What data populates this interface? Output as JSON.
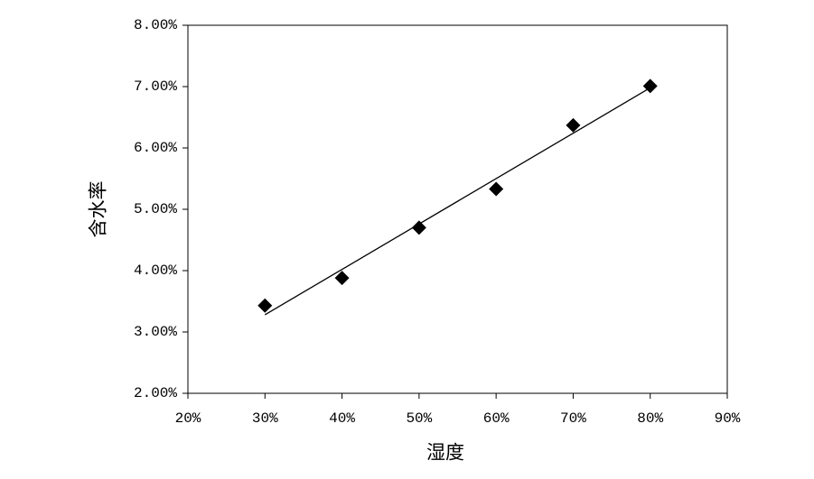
{
  "chart_data": {
    "type": "scatter",
    "x_label": "湿度",
    "y_label": "含水率",
    "x": [
      30,
      40,
      50,
      60,
      70,
      80
    ],
    "series": [
      {
        "color": "#000000",
        "values": [
          3.43,
          3.88,
          4.7,
          5.33,
          6.37,
          7.01
        ]
      }
    ],
    "trendline": {
      "x": [
        30,
        80
      ],
      "values": [
        3.28,
        6.98
      ],
      "color": "#000000"
    },
    "xlim": [
      20,
      90
    ],
    "xticks": [
      {
        "value": 20,
        "label": "20%"
      },
      {
        "value": 30,
        "label": "30%"
      },
      {
        "value": 40,
        "label": "40%"
      },
      {
        "value": 50,
        "label": "50%"
      },
      {
        "value": 60,
        "label": "60%"
      },
      {
        "value": 70,
        "label": "70%"
      },
      {
        "value": 80,
        "label": "80%"
      },
      {
        "value": 90,
        "label": "90%"
      }
    ],
    "ylim": [
      2,
      8
    ],
    "yticks": [
      {
        "value": 2,
        "label": "2.00%"
      },
      {
        "value": 3,
        "label": "3.00%"
      },
      {
        "value": 4,
        "label": "4.00%"
      },
      {
        "value": 5,
        "label": "5.00%"
      },
      {
        "value": 6,
        "label": "6.00%"
      },
      {
        "value": 7,
        "label": "7.00%"
      },
      {
        "value": 8,
        "label": "8.00%"
      }
    ],
    "grid": false
  }
}
